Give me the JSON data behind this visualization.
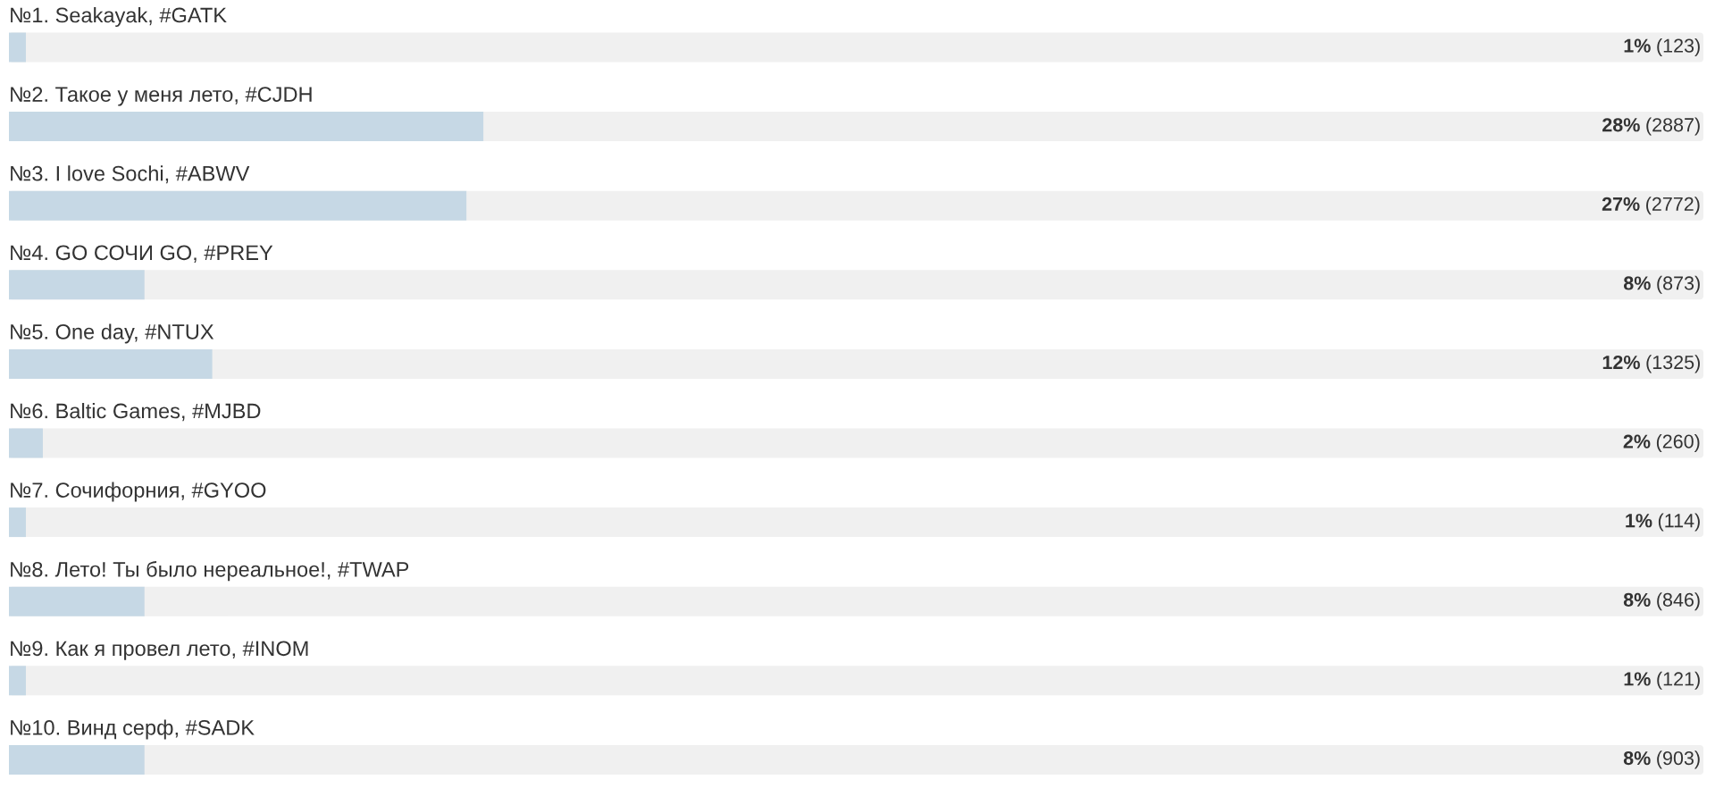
{
  "chart_data": {
    "type": "bar",
    "orientation": "horizontal",
    "categories": [
      "№1. Seakayak, #GATK",
      "№2. Такое у меня лето, #CJDH",
      "№3. I love Sochi, #ABWV",
      "№4. GO СОЧИ GO, #PREY",
      "№5. One day, #NTUX",
      "№6. Baltic Games, #MJBD",
      "№7. Сочифорния, #GYOO",
      "№8. Лето! Ты было нереальное!, #TWAP",
      "№9. Как я провел лето, #INOM",
      "№10. Винд серф, #SADK"
    ],
    "values": [
      1,
      28,
      27,
      8,
      12,
      2,
      1,
      8,
      1,
      8
    ],
    "value_labels": [
      "1% (123)",
      "28% (2887)",
      "27% (2772)",
      "8% (873)",
      "12% (1325)",
      "2% (260)",
      "1% (114)",
      "8% (846)",
      "1% (121)",
      "8% (903)"
    ],
    "color": "#c6d8e5",
    "xlim": [
      0,
      100
    ],
    "tick_labels": "y"
  }
}
